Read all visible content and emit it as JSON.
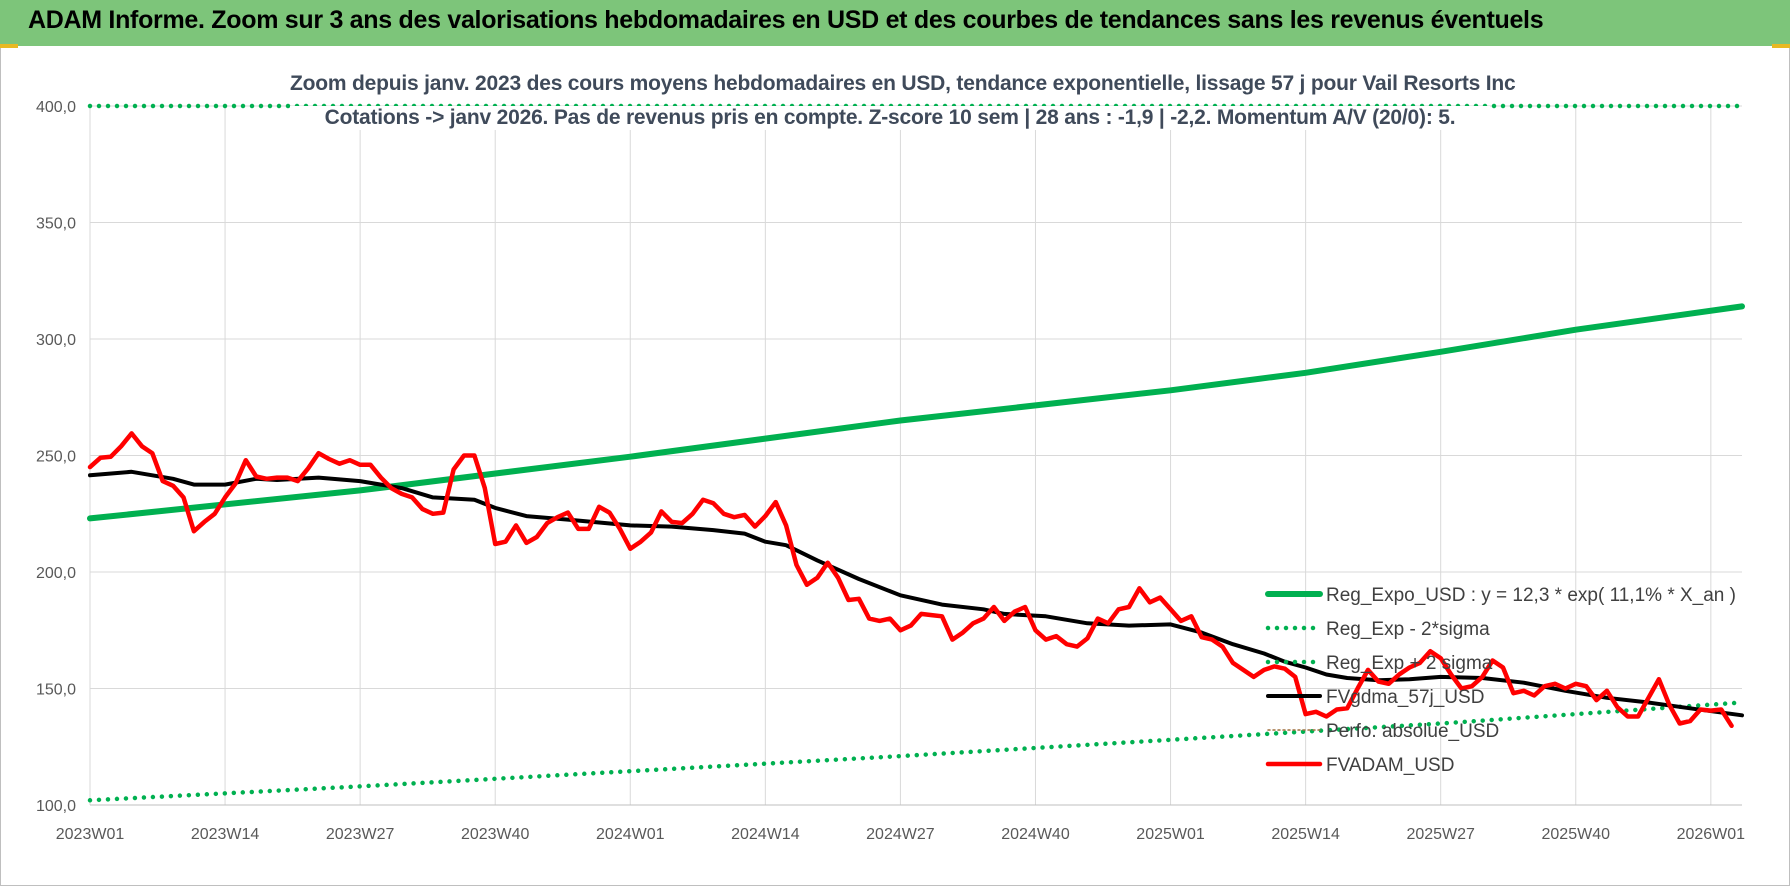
{
  "header": {
    "title": "ADAM Informe. Zoom sur 3 ans des valorisations hebdomadaires en USD et des courbes de tendances sans les revenus éventuels"
  },
  "colors": {
    "header_bg": "#7dc57a",
    "green": "#00b050",
    "black": "#000000",
    "red": "#ff0000",
    "grid": "#d9d9d9",
    "axis_text": "#595959"
  },
  "chart_data": {
    "type": "line",
    "subtitle_lines": [
      "Zoom depuis janv. 2023 des cours moyens hebdomadaires en USD, tendance exponentielle, lissage 57 j pour Vail Resorts Inc",
      "Cotations -> janv 2026. Pas de revenus pris en compte. Z-score 10 sem | 28 ans : -1,9 | -2,2. Momentum A/V (20/0): 5."
    ],
    "ylim": [
      100,
      400
    ],
    "yticks": [
      "100,0",
      "150,0",
      "200,0",
      "250,0",
      "300,0",
      "350,0",
      "400,0"
    ],
    "ytick_values": [
      100,
      150,
      200,
      250,
      300,
      350,
      400
    ],
    "xlim": [
      0,
      159
    ],
    "xticks": [
      {
        "label": "2023W01",
        "x": 0
      },
      {
        "label": "2023W14",
        "x": 13
      },
      {
        "label": "2023W27",
        "x": 26
      },
      {
        "label": "2023W40",
        "x": 39
      },
      {
        "label": "2024W01",
        "x": 52
      },
      {
        "label": "2024W14",
        "x": 65
      },
      {
        "label": "2024W27",
        "x": 78
      },
      {
        "label": "2024W40",
        "x": 91
      },
      {
        "label": "2025W01",
        "x": 104
      },
      {
        "label": "2025W14",
        "x": 117
      },
      {
        "label": "2025W27",
        "x": 130
      },
      {
        "label": "2025W40",
        "x": 143
      },
      {
        "label": "2026W01",
        "x": 156
      }
    ],
    "grid": true,
    "legend_placement": "bottom-right",
    "series": [
      {
        "name": "Reg_Expo_USD : y = 12,3 * exp( 11,1% *  X_an )",
        "style": "solid",
        "color": "#00b050",
        "points": [
          [
            0,
            223
          ],
          [
            26,
            235
          ],
          [
            52,
            249.5
          ],
          [
            78,
            265
          ],
          [
            104,
            278
          ],
          [
            117,
            285.5
          ],
          [
            130,
            294.5
          ],
          [
            143,
            304
          ],
          [
            159,
            314
          ]
        ]
      },
      {
        "name": "Reg_Exp - 2*sigma",
        "style": "dotted",
        "color": "#00b050",
        "points": [
          [
            0,
            102
          ],
          [
            26,
            108
          ],
          [
            52,
            114.5
          ],
          [
            78,
            121
          ],
          [
            104,
            128
          ],
          [
            117,
            131.5
          ],
          [
            130,
            135
          ],
          [
            143,
            139
          ],
          [
            159,
            144
          ]
        ]
      },
      {
        "name": "Reg_Exp + 2 sigma",
        "style": "dotted",
        "color": "#00b050",
        "points": [
          [
            0,
            400
          ],
          [
            159,
            400
          ]
        ]
      },
      {
        "name": "FVgdma_57j_USD",
        "style": "solid",
        "color": "#000000",
        "points": [
          [
            0,
            241.5
          ],
          [
            4,
            243
          ],
          [
            8,
            240
          ],
          [
            10,
            237.5
          ],
          [
            13,
            237.5
          ],
          [
            16,
            240
          ],
          [
            18,
            239.5
          ],
          [
            22,
            240.5
          ],
          [
            26,
            239
          ],
          [
            30,
            236
          ],
          [
            33,
            232
          ],
          [
            37,
            231
          ],
          [
            39,
            227.5
          ],
          [
            42,
            224
          ],
          [
            46,
            222.5
          ],
          [
            52,
            220
          ],
          [
            56,
            219.5
          ],
          [
            60,
            218
          ],
          [
            63,
            216.5
          ],
          [
            65,
            213
          ],
          [
            67,
            211.5
          ],
          [
            70,
            205
          ],
          [
            74,
            197
          ],
          [
            78,
            190
          ],
          [
            82,
            186
          ],
          [
            86,
            184
          ],
          [
            88,
            182
          ],
          [
            92,
            181
          ],
          [
            96,
            178
          ],
          [
            100,
            177
          ],
          [
            104,
            177.5
          ],
          [
            107,
            174
          ],
          [
            110,
            169
          ],
          [
            113,
            165
          ],
          [
            115,
            161.5
          ],
          [
            117,
            159
          ],
          [
            119,
            156
          ],
          [
            121,
            154.5
          ],
          [
            124,
            153.5
          ],
          [
            127,
            154
          ],
          [
            130,
            155
          ],
          [
            134,
            154.5
          ],
          [
            138,
            152.5
          ],
          [
            142,
            149
          ],
          [
            146,
            146
          ],
          [
            150,
            144
          ],
          [
            154,
            141.5
          ],
          [
            159,
            138.5
          ]
        ]
      },
      {
        "name": "Perfo. absolue_USD",
        "style": "solid",
        "color": "#a07040",
        "points": []
      },
      {
        "name": "FVADAM_USD",
        "style": "solid",
        "color": "#ff0000",
        "points": [
          [
            0,
            245
          ],
          [
            1,
            249
          ],
          [
            2,
            249.5
          ],
          [
            3,
            254
          ],
          [
            4,
            259.5
          ],
          [
            5,
            254
          ],
          [
            6,
            251
          ],
          [
            7,
            239
          ],
          [
            8,
            237
          ],
          [
            9,
            232
          ],
          [
            10,
            217.5
          ],
          [
            11,
            221.5
          ],
          [
            12,
            225
          ],
          [
            13,
            232
          ],
          [
            14,
            238
          ],
          [
            15,
            248
          ],
          [
            16,
            241
          ],
          [
            17,
            240
          ],
          [
            18,
            240.5
          ],
          [
            19,
            240.5
          ],
          [
            20,
            239
          ],
          [
            21,
            244.5
          ],
          [
            22,
            251
          ],
          [
            23,
            248.5
          ],
          [
            24,
            246.5
          ],
          [
            25,
            248
          ],
          [
            26,
            246
          ],
          [
            27,
            246
          ],
          [
            28,
            240.5
          ],
          [
            29,
            236
          ],
          [
            30,
            233.5
          ],
          [
            31,
            232
          ],
          [
            32,
            227
          ],
          [
            33,
            225
          ],
          [
            34,
            225.5
          ],
          [
            35,
            244
          ],
          [
            36,
            250
          ],
          [
            37,
            250
          ],
          [
            38,
            236
          ],
          [
            39,
            212
          ],
          [
            40,
            213
          ],
          [
            41,
            220
          ],
          [
            42,
            212.5
          ],
          [
            43,
            215
          ],
          [
            44,
            221
          ],
          [
            45,
            223.5
          ],
          [
            46,
            225.5
          ],
          [
            47,
            218.5
          ],
          [
            48,
            218.5
          ],
          [
            49,
            228
          ],
          [
            50,
            225.5
          ],
          [
            51,
            218.5
          ],
          [
            52,
            210
          ],
          [
            53,
            213
          ],
          [
            54,
            217
          ],
          [
            55,
            226
          ],
          [
            56,
            221.5
          ],
          [
            57,
            221
          ],
          [
            58,
            225
          ],
          [
            59,
            231
          ],
          [
            60,
            229.5
          ],
          [
            61,
            225
          ],
          [
            62,
            223.5
          ],
          [
            63,
            224.5
          ],
          [
            64,
            219.5
          ],
          [
            65,
            224
          ],
          [
            66,
            230
          ],
          [
            67,
            220
          ],
          [
            68,
            203
          ],
          [
            69,
            194.5
          ],
          [
            70,
            197.5
          ],
          [
            71,
            204
          ],
          [
            72,
            197.5
          ],
          [
            73,
            188
          ],
          [
            74,
            188.5
          ],
          [
            75,
            180
          ],
          [
            76,
            179
          ],
          [
            77,
            180
          ],
          [
            78,
            175
          ],
          [
            79,
            177
          ],
          [
            80,
            182
          ],
          [
            81,
            181.5
          ],
          [
            82,
            181
          ],
          [
            83,
            171
          ],
          [
            84,
            174
          ],
          [
            85,
            178
          ],
          [
            86,
            180
          ],
          [
            87,
            185
          ],
          [
            88,
            179
          ],
          [
            89,
            183
          ],
          [
            90,
            185
          ],
          [
            91,
            175
          ],
          [
            92,
            171
          ],
          [
            93,
            172.5
          ],
          [
            94,
            169
          ],
          [
            95,
            168
          ],
          [
            96,
            171.5
          ],
          [
            97,
            180
          ],
          [
            98,
            178
          ],
          [
            99,
            184
          ],
          [
            100,
            185
          ],
          [
            101,
            193
          ],
          [
            102,
            187
          ],
          [
            103,
            189
          ],
          [
            104,
            184
          ],
          [
            105,
            179
          ],
          [
            106,
            181
          ],
          [
            107,
            172
          ],
          [
            108,
            171
          ],
          [
            109,
            168
          ],
          [
            110,
            161
          ],
          [
            111,
            158
          ],
          [
            112,
            155
          ],
          [
            113,
            158
          ],
          [
            114,
            159.5
          ],
          [
            115,
            158.5
          ],
          [
            116,
            155
          ],
          [
            117,
            139
          ],
          [
            118,
            140
          ],
          [
            119,
            138
          ],
          [
            120,
            141
          ],
          [
            121,
            141.5
          ],
          [
            122,
            150
          ],
          [
            123,
            158
          ],
          [
            124,
            153
          ],
          [
            125,
            152
          ],
          [
            126,
            156
          ],
          [
            127,
            159
          ],
          [
            128,
            161
          ],
          [
            129,
            166
          ],
          [
            130,
            163
          ],
          [
            131,
            156
          ],
          [
            132,
            150
          ],
          [
            133,
            151
          ],
          [
            134,
            155
          ],
          [
            135,
            162
          ],
          [
            136,
            159
          ],
          [
            137,
            148
          ],
          [
            138,
            149
          ],
          [
            139,
            147
          ],
          [
            140,
            151
          ],
          [
            141,
            152
          ],
          [
            142,
            150
          ],
          [
            143,
            152
          ],
          [
            144,
            151
          ],
          [
            145,
            145
          ],
          [
            146,
            149
          ],
          [
            147,
            142
          ],
          [
            148,
            138
          ],
          [
            149,
            138
          ],
          [
            150,
            146
          ],
          [
            151,
            154
          ],
          [
            152,
            143
          ],
          [
            153,
            135
          ],
          [
            154,
            136
          ],
          [
            155,
            141
          ],
          [
            156,
            140.5
          ],
          [
            157,
            141
          ],
          [
            158,
            134
          ]
        ]
      }
    ]
  }
}
